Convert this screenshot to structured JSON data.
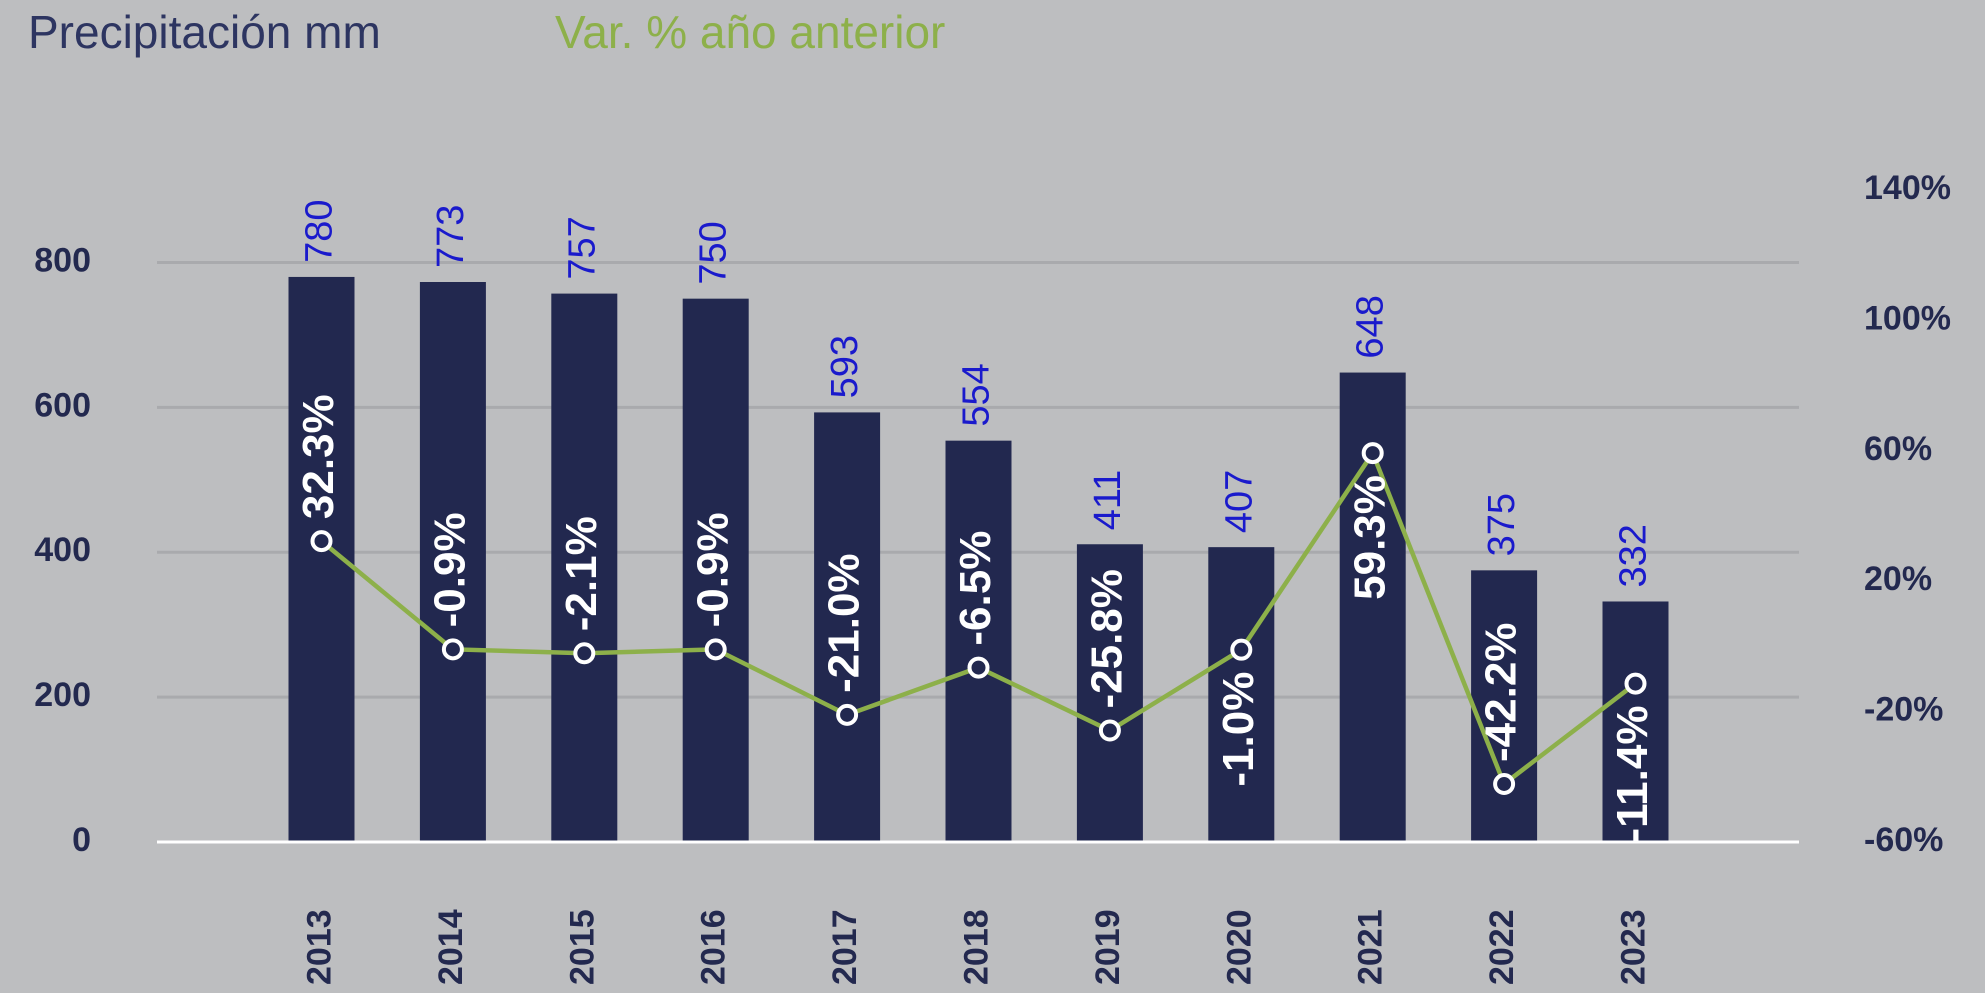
{
  "chart_data": {
    "type": "bar_line",
    "title": "Precipitación mm",
    "subtitle": "Var. % año anterior",
    "categories": [
      "2013",
      "2014",
      "2015",
      "2016",
      "2017",
      "2018",
      "2019",
      "2020",
      "2021",
      "2022",
      "2023"
    ],
    "series": [
      {
        "name": "Precipitación mm",
        "type": "bar",
        "color": "#22284f",
        "values": [
          780,
          773,
          757,
          750,
          593,
          554,
          411,
          407,
          648,
          375,
          332
        ]
      },
      {
        "name": "Var. % año anterior",
        "type": "line",
        "axis": "y2",
        "color": "#8db04a",
        "values": [
          32.3,
          -0.9,
          -2.1,
          -0.9,
          -21.0,
          -6.5,
          -25.8,
          -1.0,
          59.3,
          -42.2,
          -11.4
        ],
        "value_labels": [
          "32.3%",
          "-0.9%",
          "-2.1%",
          "-0.9%",
          "-21.0%",
          "-6.5%",
          "-25.8%",
          "-1.0%",
          "59.3%",
          "-42.2%",
          "-11.4%"
        ]
      }
    ],
    "ylim": [
      0,
      900
    ],
    "yticks": [
      0,
      200,
      400,
      600,
      800
    ],
    "y2lim": [
      -60,
      140
    ],
    "y2ticks": [
      {
        "value": -60,
        "label": "-60%"
      },
      {
        "value": -20,
        "label": "-20%"
      },
      {
        "value": 20,
        "label": "20%"
      },
      {
        "value": 60,
        "label": "60%"
      },
      {
        "value": 100,
        "label": "100%"
      },
      {
        "value": 140,
        "label": "140%"
      }
    ],
    "grid": true
  }
}
